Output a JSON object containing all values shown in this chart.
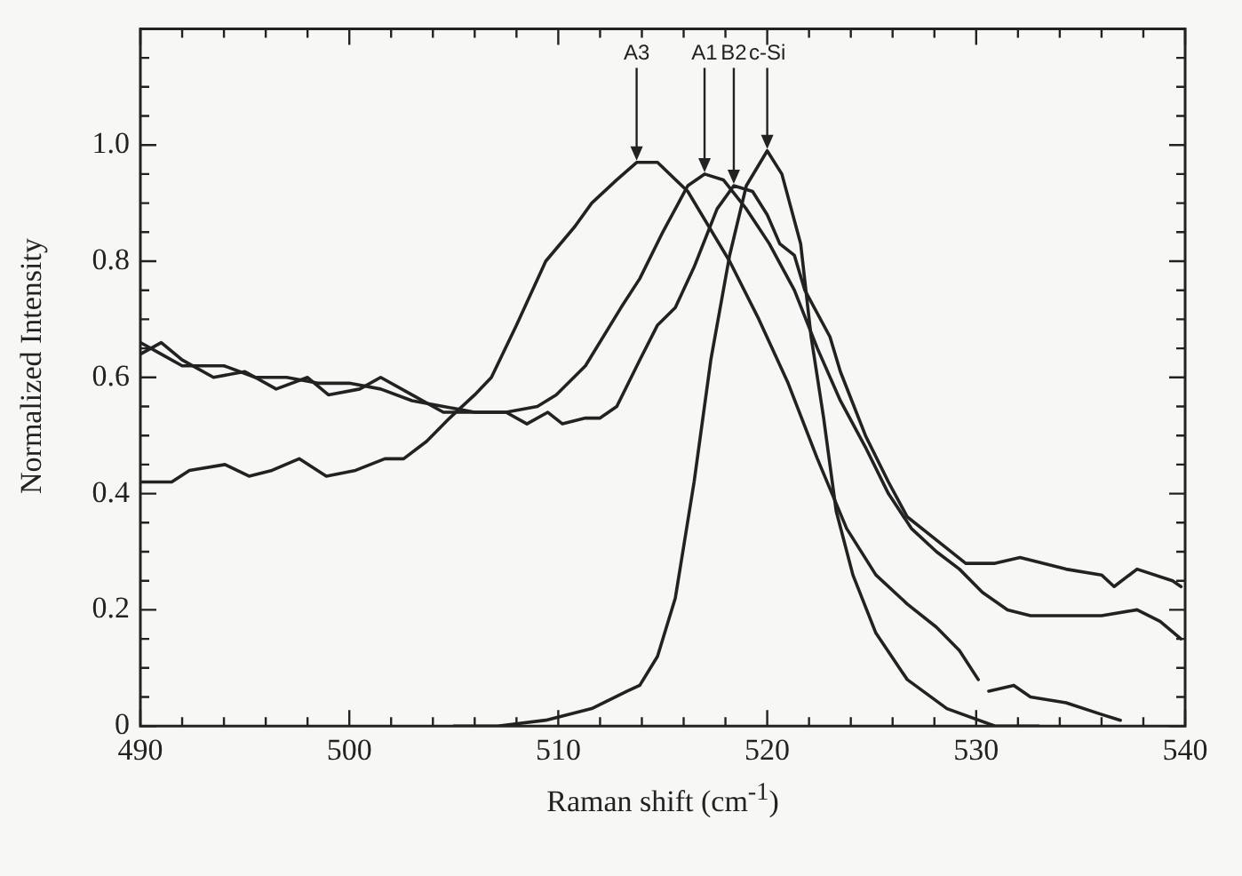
{
  "chart_data": {
    "type": "line",
    "xlabel": "Raman shift (cm$^{-1}$)",
    "ylabel": "Normalized Intensity",
    "xlim": [
      490,
      540
    ],
    "ylim": [
      0,
      1.2
    ],
    "xticks": [
      490,
      {
        "value": 492,
        "label": null
      },
      {
        "value": 494,
        "label": null
      },
      {
        "value": 496,
        "label": null
      },
      {
        "value": 498,
        "label": null
      },
      500,
      {
        "value": 502,
        "label": null
      },
      {
        "value": 504,
        "label": null
      },
      {
        "value": 506,
        "label": null
      },
      {
        "value": 508,
        "label": null
      },
      510,
      {
        "value": 512,
        "label": null
      },
      {
        "value": 514,
        "label": null
      },
      {
        "value": 516,
        "label": null
      },
      {
        "value": 518,
        "label": null
      },
      520,
      {
        "value": 522,
        "label": null
      },
      {
        "value": 524,
        "label": null
      },
      {
        "value": 526,
        "label": null
      },
      {
        "value": 528,
        "label": null
      },
      530,
      {
        "value": 532,
        "label": null
      },
      {
        "value": 534,
        "label": null
      },
      {
        "value": 536,
        "label": null
      },
      {
        "value": 538,
        "label": null
      },
      540
    ],
    "yticks": [
      0,
      {
        "value": 0.05,
        "label": null
      },
      {
        "value": 0.1,
        "label": null
      },
      {
        "value": 0.15,
        "label": null
      },
      {
        "value": 0.2,
        "label": "0.2"
      },
      {
        "value": 0.25,
        "label": null
      },
      {
        "value": 0.3,
        "label": null
      },
      {
        "value": 0.35,
        "label": null
      },
      {
        "value": 0.4,
        "label": "0.4"
      },
      {
        "value": 0.45,
        "label": null
      },
      {
        "value": 0.5,
        "label": null
      },
      {
        "value": 0.55,
        "label": null
      },
      {
        "value": 0.6,
        "label": "0.6"
      },
      {
        "value": 0.65,
        "label": null
      },
      {
        "value": 0.7,
        "label": null
      },
      {
        "value": 0.75,
        "label": null
      },
      {
        "value": 0.8,
        "label": "0.8"
      },
      {
        "value": 0.85,
        "label": null
      },
      {
        "value": 0.9,
        "label": null
      },
      {
        "value": 0.95,
        "label": null
      },
      {
        "value": 1,
        "label": "1.0"
      },
      {
        "value": 1.05,
        "label": null
      },
      {
        "value": 1.1,
        "label": null
      },
      {
        "value": 1.15,
        "label": null
      },
      {
        "value": 1.2,
        "label": null
      }
    ],
    "grid": false,
    "legend": false,
    "marker": "none",
    "line_style": "solid",
    "annotations": [
      {
        "text": "A3",
        "x": 513.75,
        "y": 0.97
      },
      {
        "text": "A1",
        "x": 517,
        "y": 0.95
      },
      {
        "text": "B2",
        "x": 518.4,
        "y": 0.93
      },
      {
        "text": "c-Si",
        "x": 520,
        "y": 0.99
      }
    ],
    "series": [
      {
        "color": "#222222",
        "x": [
          490,
          491.5,
          492.35,
          494.05,
          495.2,
          496.3,
          497.6,
          498.9,
          500.3,
          501.7,
          502.6,
          503.7,
          504.8,
          506,
          506.8,
          508,
          509.4,
          510.8,
          511.6,
          512.8,
          513.75,
          514.75,
          516.2,
          518.2,
          519.6,
          521,
          522.4,
          523.8,
          525.2,
          526.7,
          528.1,
          529.2,
          530.1,
          530.35,
          530.6,
          531.8,
          532.6,
          534.3,
          536,
          536.9
        ],
        "values": [
          0.42,
          0.42,
          0.44,
          0.45,
          0.43,
          0.44,
          0.46,
          0.43,
          0.44,
          0.46,
          0.46,
          0.49,
          0.53,
          0.57,
          0.6,
          0.69,
          0.8,
          0.86,
          0.9,
          0.94,
          0.97,
          0.97,
          0.92,
          0.8,
          0.7,
          0.59,
          0.46,
          0.34,
          0.26,
          0.21,
          0.17,
          0.13,
          0.08,
          null,
          0.06,
          0.07,
          0.05,
          0.04,
          0.02,
          0.01
        ]
      },
      {
        "color": "#222222",
        "x": [
          490,
          491,
          492,
          494,
          495.5,
          497,
          498.5,
          500,
          501.5,
          503,
          504.5,
          506,
          507.5,
          509,
          509.9,
          511.3,
          513,
          513.9,
          515,
          516.2,
          517,
          517.9,
          519,
          520.1,
          521.3,
          522.4,
          523.5,
          524.7,
          525.8,
          526.9,
          528.1,
          529.2,
          530.3,
          531.5,
          532.6,
          534.3,
          536,
          537.7,
          538.8,
          539.8
        ],
        "values": [
          0.66,
          0.64,
          0.62,
          0.62,
          0.6,
          0.6,
          0.59,
          0.59,
          0.58,
          0.56,
          0.55,
          0.54,
          0.54,
          0.55,
          0.57,
          0.62,
          0.72,
          0.77,
          0.85,
          0.93,
          0.95,
          0.94,
          0.89,
          0.83,
          0.75,
          0.65,
          0.56,
          0.48,
          0.4,
          0.34,
          0.3,
          0.27,
          0.23,
          0.2,
          0.19,
          0.19,
          0.19,
          0.2,
          0.18,
          0.15
        ]
      },
      {
        "color": "#222222",
        "x": [
          490,
          491,
          492,
          493.5,
          495,
          496.5,
          498,
          499,
          500.5,
          501.5,
          503,
          504.5,
          506,
          507.5,
          508.5,
          509.5,
          510.2,
          511.3,
          512,
          512.8,
          513.9,
          514.75,
          515.6,
          516.5,
          517.6,
          518.4,
          519.3,
          520,
          520.6,
          521.3,
          521.8,
          523,
          523.5,
          524.7,
          525.8,
          526.7,
          528.1,
          529.5,
          530.9,
          532.1,
          533.2,
          534.3,
          536,
          536.6,
          537.7,
          539.4,
          539.8
        ],
        "values": [
          0.64,
          0.66,
          0.63,
          0.6,
          0.61,
          0.58,
          0.6,
          0.57,
          0.58,
          0.6,
          0.57,
          0.54,
          0.54,
          0.54,
          0.52,
          0.54,
          0.52,
          0.53,
          0.53,
          0.55,
          0.63,
          0.69,
          0.72,
          0.79,
          0.89,
          0.93,
          0.92,
          0.88,
          0.83,
          0.81,
          0.75,
          0.67,
          0.61,
          0.5,
          0.42,
          0.36,
          0.32,
          0.28,
          0.28,
          0.29,
          0.28,
          0.27,
          0.26,
          0.24,
          0.27,
          0.25,
          0.24
        ]
      },
      {
        "color": "#222222",
        "x": [
          505,
          507.1,
          509.4,
          511.6,
          513.3,
          513.9,
          514.75,
          515.6,
          516.5,
          517.3,
          518.2,
          519,
          520,
          520.7,
          521.6,
          522.1,
          522.7,
          523.3,
          524.1,
          525.2,
          526.7,
          528.6,
          530.9,
          533
        ],
        "values": [
          0,
          0,
          0.01,
          0.03,
          0.06,
          0.07,
          0.12,
          0.22,
          0.42,
          0.63,
          0.81,
          0.93,
          0.99,
          0.95,
          0.83,
          0.67,
          0.53,
          0.37,
          0.26,
          0.16,
          0.08,
          0.03,
          0,
          0
        ]
      }
    ]
  }
}
